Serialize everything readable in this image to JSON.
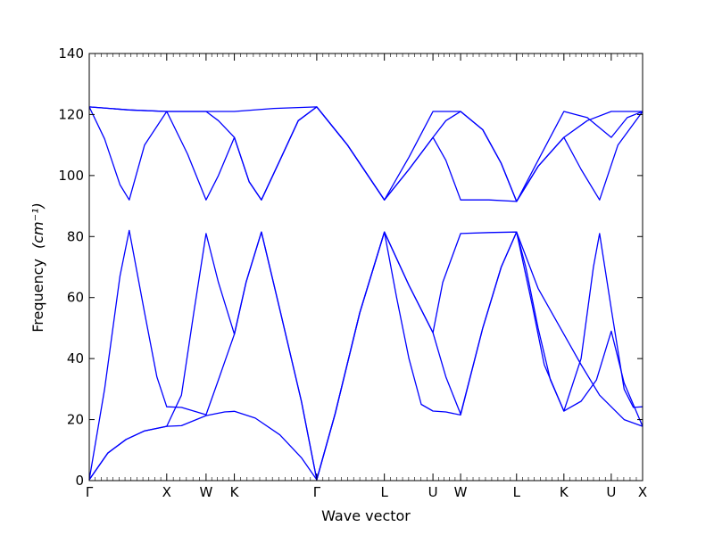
{
  "chart_data": {
    "type": "line",
    "xlabel": "Wave vector",
    "ylabel": "Frequency",
    "ylabel_unit": "(cm⁻¹)",
    "ylim": [
      0,
      140
    ],
    "yticks": [
      0,
      20,
      40,
      60,
      80,
      100,
      120,
      140
    ],
    "xlim": [
      0,
      9.0
    ],
    "grid": false,
    "color": "#0000ff",
    "high_symmetry_points": [
      {
        "label": "Γ",
        "x": 0.0
      },
      {
        "label": "X",
        "x": 1.26
      },
      {
        "label": "W",
        "x": 1.9
      },
      {
        "label": "K",
        "x": 2.36
      },
      {
        "label": "Γ",
        "x": 3.7
      },
      {
        "label": "L",
        "x": 4.8
      },
      {
        "label": "U",
        "x": 5.59
      },
      {
        "label": "W",
        "x": 6.04
      },
      {
        "label": "L",
        "x": 6.95
      },
      {
        "label": "K",
        "x": 7.72
      },
      {
        "label": "U",
        "x": 8.49
      },
      {
        "label": "X",
        "x": 9.0
      }
    ],
    "series": [
      {
        "values": [
          [
            0,
            0.3
          ],
          [
            0.3,
            9
          ],
          [
            0.6,
            13.5
          ],
          [
            0.9,
            16.3
          ],
          [
            1.26,
            17.8
          ],
          [
            1.5,
            18
          ],
          [
            1.9,
            21.3
          ],
          [
            2.2,
            22.5
          ],
          [
            2.36,
            22.7
          ],
          [
            2.7,
            20.5
          ],
          [
            3.1,
            15
          ],
          [
            3.45,
            7.5
          ],
          [
            3.7,
            0.3
          ],
          [
            4.0,
            22
          ],
          [
            4.4,
            55
          ],
          [
            4.8,
            81.5
          ],
          [
            5.2,
            64
          ],
          [
            5.59,
            48.5
          ],
          [
            5.8,
            34
          ],
          [
            6.04,
            21.8
          ],
          [
            6.4,
            50
          ],
          [
            6.7,
            70
          ],
          [
            6.95,
            81.5
          ],
          [
            7.3,
            63
          ],
          [
            7.72,
            48
          ],
          [
            8.0,
            38
          ],
          [
            8.3,
            28
          ],
          [
            8.7,
            20
          ],
          [
            9.0,
            17.8
          ]
        ]
      },
      {
        "values": [
          [
            0,
            0.3
          ],
          [
            0.3,
            9
          ],
          [
            0.6,
            13.5
          ],
          [
            0.9,
            16.3
          ],
          [
            1.26,
            17.8
          ],
          [
            1.5,
            28
          ],
          [
            1.7,
            55
          ],
          [
            1.9,
            81
          ],
          [
            2.1,
            65
          ],
          [
            2.36,
            48
          ],
          [
            2.55,
            65
          ],
          [
            2.8,
            81.5
          ],
          [
            3.1,
            56
          ],
          [
            3.45,
            26
          ],
          [
            3.7,
            0.3
          ],
          [
            4.0,
            22
          ],
          [
            4.4,
            55
          ],
          [
            4.8,
            81.5
          ],
          [
            5.0,
            60
          ],
          [
            5.2,
            40
          ],
          [
            5.4,
            25
          ],
          [
            5.59,
            22.8
          ],
          [
            5.8,
            22.5
          ],
          [
            6.04,
            21.5
          ],
          [
            6.4,
            50
          ],
          [
            6.7,
            70
          ],
          [
            6.95,
            81.5
          ],
          [
            7.1,
            70
          ],
          [
            7.3,
            50
          ],
          [
            7.5,
            33
          ],
          [
            7.72,
            22.8
          ],
          [
            8.0,
            26
          ],
          [
            8.25,
            33
          ],
          [
            8.49,
            49
          ],
          [
            8.7,
            32
          ],
          [
            9.0,
            17.8
          ]
        ]
      },
      {
        "values": [
          [
            0,
            0.3
          ],
          [
            0.25,
            30
          ],
          [
            0.5,
            67
          ],
          [
            0.65,
            82
          ],
          [
            0.9,
            55
          ],
          [
            1.1,
            34
          ],
          [
            1.26,
            24.2
          ],
          [
            1.5,
            24
          ],
          [
            1.9,
            21.6
          ],
          [
            2.1,
            33
          ],
          [
            2.36,
            48
          ],
          [
            2.55,
            65
          ],
          [
            2.8,
            81.5
          ],
          [
            3.1,
            56
          ],
          [
            3.45,
            26
          ],
          [
            3.7,
            0.3
          ],
          [
            4.0,
            22
          ],
          [
            4.4,
            55
          ],
          [
            4.8,
            81.5
          ],
          [
            5.2,
            64
          ],
          [
            5.59,
            48.5
          ],
          [
            5.75,
            65
          ],
          [
            6.04,
            81
          ],
          [
            6.5,
            81.3
          ],
          [
            6.95,
            81.5
          ],
          [
            7.2,
            58
          ],
          [
            7.4,
            38
          ],
          [
            7.72,
            22.8
          ],
          [
            8.0,
            40
          ],
          [
            8.2,
            70
          ],
          [
            8.3,
            81
          ],
          [
            8.5,
            55
          ],
          [
            8.7,
            30
          ],
          [
            8.85,
            24
          ],
          [
            9.0,
            24.2
          ]
        ]
      },
      {
        "values": [
          [
            0,
            122.5
          ],
          [
            0.65,
            121.5
          ],
          [
            1.26,
            121
          ],
          [
            1.9,
            121
          ],
          [
            2.36,
            121
          ],
          [
            3.0,
            122
          ],
          [
            3.7,
            122.5
          ],
          [
            4.2,
            110
          ],
          [
            4.8,
            92
          ],
          [
            5.2,
            106
          ],
          [
            5.59,
            121
          ],
          [
            5.8,
            121
          ],
          [
            6.04,
            121
          ],
          [
            6.4,
            115
          ],
          [
            6.7,
            104
          ],
          [
            6.95,
            91.5
          ],
          [
            7.3,
            105
          ],
          [
            7.72,
            121
          ],
          [
            8.1,
            119
          ],
          [
            8.49,
            112.5
          ],
          [
            8.75,
            119
          ],
          [
            9.0,
            121
          ]
        ]
      },
      {
        "values": [
          [
            0,
            122.5
          ],
          [
            0.25,
            112
          ],
          [
            0.5,
            97
          ],
          [
            0.65,
            92
          ],
          [
            0.9,
            110
          ],
          [
            1.26,
            121
          ],
          [
            1.6,
            107
          ],
          [
            1.9,
            92
          ],
          [
            2.1,
            100
          ],
          [
            2.36,
            112.5
          ],
          [
            2.6,
            98
          ],
          [
            2.8,
            92
          ],
          [
            3.1,
            105
          ],
          [
            3.4,
            118
          ],
          [
            3.7,
            122.5
          ],
          [
            4.2,
            110
          ],
          [
            4.8,
            92
          ],
          [
            5.2,
            102
          ],
          [
            5.59,
            112.5
          ],
          [
            5.8,
            105
          ],
          [
            6.04,
            92
          ],
          [
            6.5,
            92
          ],
          [
            6.95,
            91.5
          ],
          [
            7.3,
            103
          ],
          [
            7.72,
            112.5
          ],
          [
            8.0,
            102
          ],
          [
            8.3,
            92
          ],
          [
            8.6,
            110
          ],
          [
            9.0,
            121
          ]
        ]
      },
      {
        "values": [
          [
            0,
            122.5
          ],
          [
            0.65,
            121.5
          ],
          [
            1.26,
            121
          ],
          [
            1.9,
            121
          ],
          [
            2.1,
            118
          ],
          [
            2.36,
            112.5
          ],
          [
            2.6,
            98
          ],
          [
            2.8,
            92
          ],
          [
            3.1,
            105
          ],
          [
            3.4,
            118
          ],
          [
            3.7,
            122.5
          ],
          [
            4.2,
            110
          ],
          [
            4.8,
            92
          ],
          [
            5.2,
            102
          ],
          [
            5.59,
            112.5
          ],
          [
            5.8,
            118
          ],
          [
            6.04,
            121
          ],
          [
            6.4,
            115
          ],
          [
            6.7,
            104
          ],
          [
            6.95,
            91.5
          ],
          [
            7.3,
            103
          ],
          [
            7.72,
            112.5
          ],
          [
            8.1,
            118
          ],
          [
            8.49,
            121
          ],
          [
            9.0,
            121
          ]
        ]
      }
    ]
  }
}
